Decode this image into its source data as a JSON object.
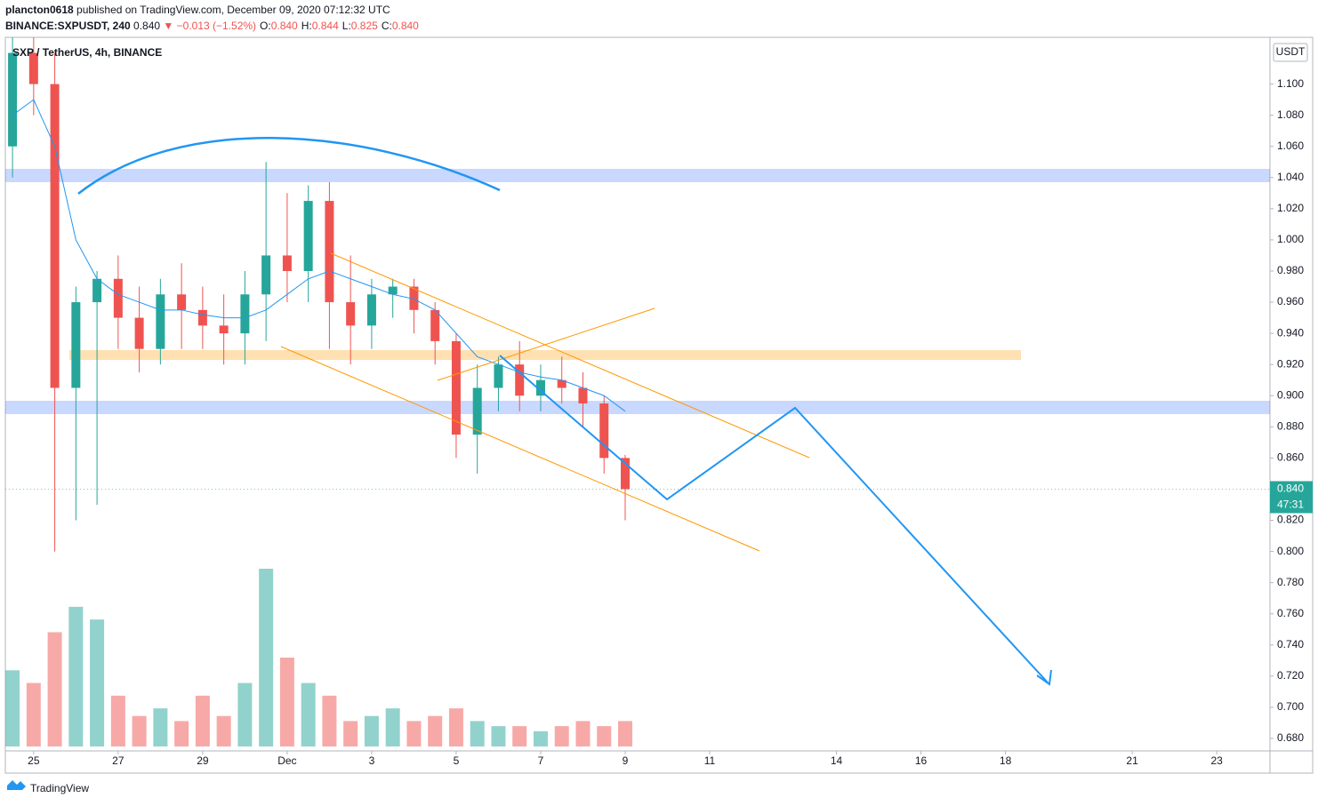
{
  "header": {
    "publisher": "plancton0618",
    "published": "published on TradingView.com, December 09, 2020 07:12:32 UTC",
    "symbol": "BINANCE:SXPUSDT, 240",
    "last": "0.840",
    "change": "▼ −0.013 (−1.52%)",
    "ohlc": [
      {
        "label": "O:",
        "value": "0.840"
      },
      {
        "label": "H:",
        "value": "0.844"
      },
      {
        "label": "L:",
        "value": "0.825"
      },
      {
        "label": "C:",
        "value": "0.840"
      }
    ]
  },
  "footer": {
    "brand": "TradingView"
  },
  "chart_data": {
    "type": "candlestick",
    "legend": "SXP / TetherUS, 4h, BINANCE",
    "y_axis_label": "USDT",
    "price_badge": "0.840",
    "countdown": "47:31",
    "up_color": "#26a69a",
    "down_color": "#ef5350",
    "ma_color": "#2196f3",
    "x": [
      -0.5,
      0,
      0.5,
      1,
      1.5,
      2,
      2.5,
      3,
      3.5,
      4,
      4.5,
      5,
      5.5,
      6,
      6.5,
      7,
      7.5,
      8,
      8.5,
      9,
      9.5,
      10,
      10.5,
      11,
      11.5,
      12,
      12.5,
      13,
      13.5,
      14
    ],
    "open": [
      1.06,
      1.12,
      1.1,
      0.905,
      0.96,
      0.975,
      0.95,
      0.93,
      0.965,
      0.955,
      0.945,
      0.94,
      0.965,
      0.99,
      0.98,
      1.025,
      0.96,
      0.945,
      0.965,
      0.97,
      0.955,
      0.935,
      0.875,
      0.905,
      0.92,
      0.9,
      0.91,
      0.905,
      0.895,
      0.86
    ],
    "high": [
      1.13,
      1.13,
      1.12,
      0.97,
      0.98,
      0.99,
      0.97,
      0.975,
      0.985,
      0.97,
      0.965,
      0.98,
      1.05,
      1.03,
      1.035,
      1.037,
      0.99,
      0.975,
      0.975,
      0.975,
      0.96,
      0.94,
      0.92,
      0.925,
      0.935,
      0.92,
      0.925,
      0.915,
      0.9,
      0.862
    ],
    "low": [
      1.04,
      1.08,
      0.8,
      0.82,
      0.83,
      0.93,
      0.915,
      0.92,
      0.93,
      0.93,
      0.92,
      0.92,
      0.935,
      0.96,
      0.96,
      0.93,
      0.92,
      0.93,
      0.95,
      0.94,
      0.92,
      0.86,
      0.85,
      0.89,
      0.89,
      0.89,
      0.895,
      0.88,
      0.85,
      0.82
    ],
    "close": [
      1.12,
      1.1,
      0.905,
      0.96,
      0.975,
      0.95,
      0.93,
      0.965,
      0.955,
      0.945,
      0.94,
      0.965,
      0.99,
      0.98,
      1.025,
      0.96,
      0.945,
      0.965,
      0.97,
      0.955,
      0.935,
      0.875,
      0.905,
      0.92,
      0.9,
      0.91,
      0.905,
      0.895,
      0.86,
      0.84
    ],
    "volume": [
      30,
      25,
      45,
      55,
      50,
      20,
      12,
      15,
      10,
      20,
      12,
      25,
      70,
      35,
      25,
      20,
      10,
      12,
      15,
      10,
      12,
      15,
      10,
      8,
      8,
      6,
      8,
      10,
      8,
      10
    ],
    "ma": {
      "values": [
        1.08,
        1.09,
        1.06,
        1.0,
        0.975,
        0.965,
        0.96,
        0.955,
        0.955,
        0.952,
        0.95,
        0.95,
        0.955,
        0.965,
        0.975,
        0.98,
        0.975,
        0.97,
        0.965,
        0.962,
        0.955,
        0.94,
        0.925,
        0.92,
        0.915,
        0.912,
        0.91,
        0.905,
        0.9,
        0.89
      ]
    },
    "xlim": [
      -0.67,
      29.26
    ],
    "ylim": [
      0.672,
      1.13
    ],
    "xticks": [
      {
        "value": 0,
        "label": "25"
      },
      {
        "value": 2,
        "label": "27"
      },
      {
        "value": 4,
        "label": "29"
      },
      {
        "value": 6,
        "label": "Dec"
      },
      {
        "value": 8,
        "label": "3"
      },
      {
        "value": 10,
        "label": "5"
      },
      {
        "value": 12,
        "label": "7"
      },
      {
        "value": 14,
        "label": "9"
      },
      {
        "value": 16,
        "label": "11"
      },
      {
        "value": 19,
        "label": "14"
      },
      {
        "value": 21,
        "label": "16"
      },
      {
        "value": 23,
        "label": "18"
      },
      {
        "value": 26,
        "label": "21"
      },
      {
        "value": 28,
        "label": "23"
      }
    ],
    "yticks": [
      {
        "value": 0.68,
        "label": "0.680"
      },
      {
        "value": 0.7,
        "label": "0.700"
      },
      {
        "value": 0.72,
        "label": "0.720"
      },
      {
        "value": 0.74,
        "label": "0.740"
      },
      {
        "value": 0.76,
        "label": "0.760"
      },
      {
        "value": 0.78,
        "label": "0.780"
      },
      {
        "value": 0.8,
        "label": "0.800"
      },
      {
        "value": 0.82,
        "label": "0.820"
      },
      {
        "value": 0.86,
        "label": "0.860"
      },
      {
        "value": 0.88,
        "label": "0.880"
      },
      {
        "value": 0.9,
        "label": "0.900"
      },
      {
        "value": 0.92,
        "label": "0.920"
      },
      {
        "value": 0.94,
        "label": "0.940"
      },
      {
        "value": 0.96,
        "label": "0.960"
      },
      {
        "value": 0.98,
        "label": "0.980"
      },
      {
        "value": 1.0,
        "label": "1.000"
      },
      {
        "value": 1.02,
        "label": "1.020"
      },
      {
        "value": 1.04,
        "label": "1.040"
      },
      {
        "value": 1.06,
        "label": "1.060"
      },
      {
        "value": 1.08,
        "label": "1.080"
      },
      {
        "value": 1.1,
        "label": "1.100"
      }
    ]
  }
}
